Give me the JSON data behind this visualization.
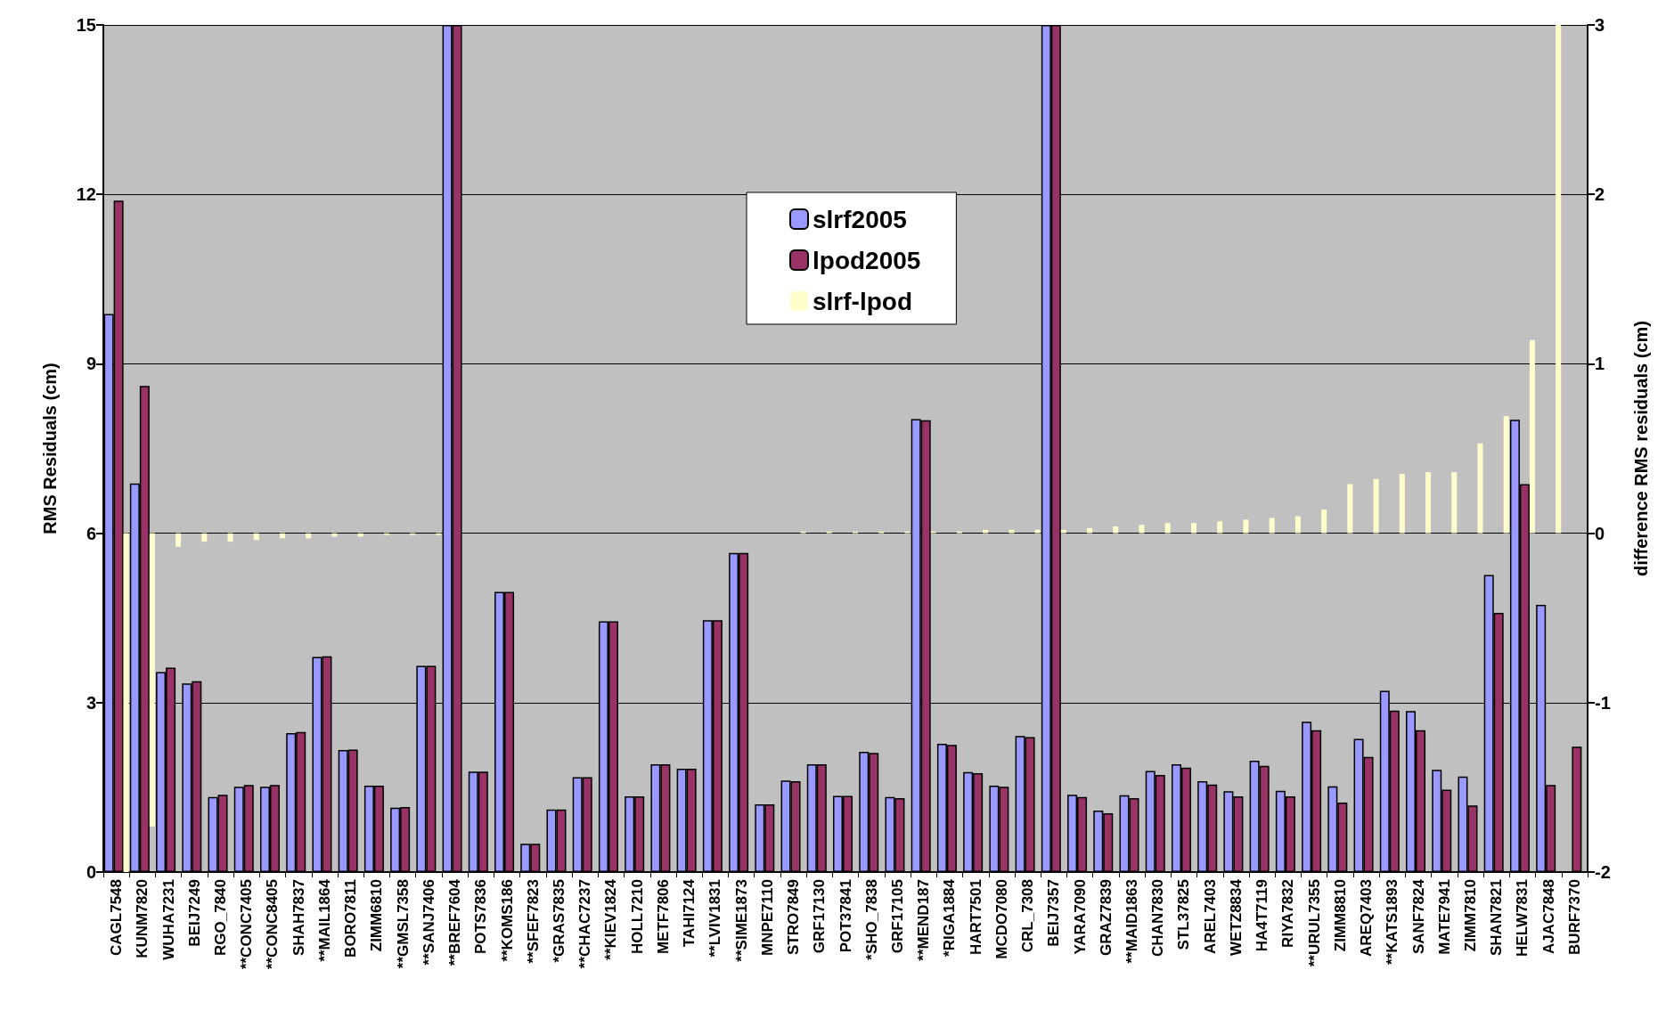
{
  "chart_data": {
    "type": "bar",
    "ylabel": "RMS Residuals (cm)",
    "y2label": "difference RMS residuals (cm)",
    "categories": [
      "CAGL7548",
      "KUNM7820",
      "WUHA7231",
      "BEIJ7249",
      "RGO_7840",
      "**CONC7405",
      "**CONC8405",
      "SHAH7837",
      "**MAIL1864",
      "BORO7811",
      "ZIMM6810",
      "**GMSL7358",
      "**SANJ7406",
      "**BREF7604",
      "POTS7836",
      "**KOMS186",
      "**SFEF7823",
      "*GRAS7835",
      "**CHAC7237",
      "**KIEV1824",
      "HOLL7210",
      "METF7806",
      "TAHI7124",
      "**LVIV1831",
      "**SIME1873",
      "MNPE7110",
      "STRO7849",
      "GRF17130",
      "POT37841",
      "*SHO_7838",
      "GRF17105",
      "**MEND187",
      "*RIGA1884",
      "HART7501",
      "MCDO7080",
      "CRL_7308",
      "BEIJ7357",
      "YARA7090",
      "GRAZ7839",
      "**MAID1863",
      "CHAN7830",
      "STL37825",
      "AREL7403",
      "WETZ8834",
      "HA4T7119",
      "RIYA7832",
      "**URUL7355",
      "ZIMM8810",
      "AREQ7403",
      "**KATS1893",
      "SANF7824",
      "MATE7941",
      "ZIMM7810",
      "SHAN7821",
      "HELW7831",
      "AJAC7848",
      "BURF7370"
    ],
    "series": [
      {
        "name": "slrf2005",
        "color": "#9999ff",
        "values": [
          9.88,
          6.88,
          3.54,
          3.34,
          1.33,
          1.51,
          1.51,
          2.46,
          3.81,
          2.16,
          1.53,
          1.14,
          3.65,
          15,
          1.78,
          4.96,
          0.5,
          1.11,
          1.68,
          4.44,
          1.34,
          1.91,
          1.83,
          4.46,
          5.65,
          1.2,
          1.62,
          1.91,
          1.35,
          2.13,
          1.33,
          8.02,
          2.27,
          1.77,
          1.53,
          2.41,
          15,
          1.37,
          1.09,
          1.36,
          1.79,
          1.91,
          1.61,
          1.43,
          1.97,
          1.44,
          2.66,
          1.52,
          2.36,
          3.21,
          2.85,
          1.81,
          1.69,
          5.26,
          8.01,
          4.73,
          null
        ]
      },
      {
        "name": "lpod2005",
        "color": "#993366",
        "values": [
          11.89,
          8.61,
          3.62,
          3.38,
          1.37,
          1.54,
          1.54,
          2.48,
          3.82,
          2.17,
          1.53,
          1.15,
          3.65,
          15,
          1.78,
          4.96,
          0.5,
          1.11,
          1.68,
          4.44,
          1.34,
          1.91,
          1.83,
          4.46,
          5.65,
          1.2,
          1.61,
          1.91,
          1.35,
          2.11,
          1.31,
          8.0,
          2.25,
          1.75,
          1.51,
          2.39,
          15,
          1.33,
          1.04,
          1.31,
          1.72,
          1.85,
          1.55,
          1.34,
          1.88,
          1.34,
          2.51,
          1.23,
          2.04,
          2.86,
          2.51,
          1.46,
          1.18,
          4.59,
          6.87,
          1.54,
          2.22
        ]
      },
      {
        "name": "slrf-lpod",
        "color": "#ffffcc",
        "axis": "y2",
        "values": [
          -2,
          -1.73,
          -0.08,
          -0.05,
          -0.05,
          -0.04,
          -0.03,
          -0.03,
          -0.02,
          -0.02,
          -0.01,
          -0.01,
          -0.01,
          0,
          0,
          0,
          0,
          0,
          0,
          0,
          0,
          0,
          0,
          0,
          0,
          0,
          0.01,
          0.01,
          0.01,
          0.01,
          0.01,
          0.01,
          0.01,
          0.02,
          0.02,
          0.02,
          0.02,
          0.03,
          0.04,
          0.05,
          0.06,
          0.06,
          0.07,
          0.08,
          0.09,
          0.1,
          0.14,
          0.29,
          0.32,
          0.35,
          0.36,
          0.36,
          0.53,
          0.69,
          1.14,
          3,
          null
        ]
      }
    ],
    "ylim": [
      0,
      15
    ],
    "yticks": [
      0,
      3,
      6,
      9,
      12,
      15
    ],
    "y2lim": [
      -2,
      3
    ],
    "y2ticks": [
      -2,
      -1,
      0,
      1,
      2,
      3
    ],
    "grid": "y",
    "legend": "top"
  }
}
